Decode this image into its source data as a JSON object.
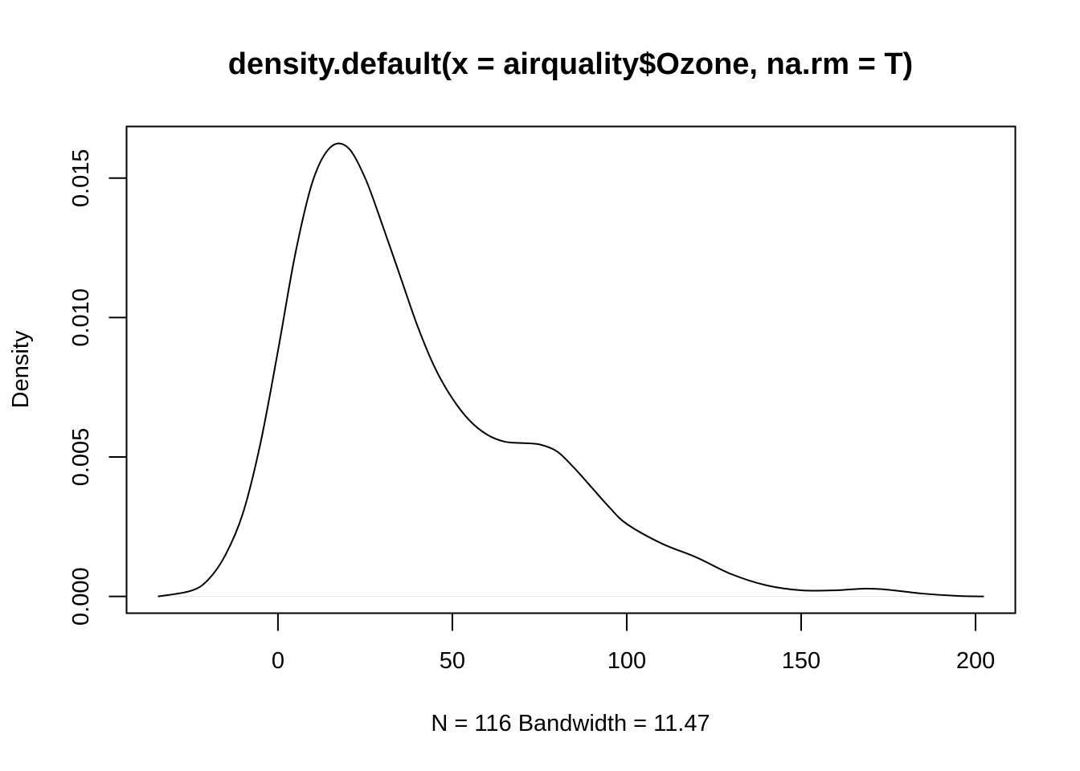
{
  "chart_data": {
    "type": "line",
    "title": "density.default(x = airquality$Ozone, na.rm = T)",
    "xlabel": "N = 116   Bandwidth = 11.47",
    "ylabel": "Density",
    "xlim": [
      -43.4,
      211.4
    ],
    "ylim": [
      -0.0006,
      0.01685
    ],
    "x_ticks": [
      0,
      50,
      100,
      150,
      200
    ],
    "x_tick_labels": [
      "0",
      "50",
      "100",
      "150",
      "200"
    ],
    "y_ticks": [
      0.0,
      0.005,
      0.01,
      0.015
    ],
    "y_tick_labels": [
      "0.000",
      "0.005",
      "0.010",
      "0.015"
    ],
    "grid": false,
    "baseline": 0,
    "colors": {
      "line": "#000000",
      "baseline": "#e8e8e8",
      "axis": "#000000"
    },
    "series": [
      {
        "x": [
          -34.4,
          -25,
          -20,
          -15,
          -10,
          -5,
          0,
          5,
          10,
          15,
          20,
          25,
          30,
          35,
          40,
          45,
          50,
          55,
          60,
          65,
          70,
          75,
          80,
          85,
          90,
          95,
          100,
          110,
          120,
          130,
          140,
          150,
          160,
          168,
          175,
          185,
          195,
          202.4
        ],
        "y": [
          0.0,
          0.0002,
          0.0006,
          0.0015,
          0.003,
          0.0055,
          0.0088,
          0.0123,
          0.0149,
          0.0161,
          0.0161,
          0.015,
          0.0133,
          0.0115,
          0.0097,
          0.0082,
          0.0071,
          0.0063,
          0.0058,
          0.00555,
          0.0055,
          0.00545,
          0.0052,
          0.0046,
          0.0039,
          0.0032,
          0.0026,
          0.0019,
          0.0014,
          0.0008,
          0.0004,
          0.00022,
          0.00022,
          0.00028,
          0.00024,
          0.0001,
          2e-05,
          0.0
        ]
      }
    ]
  }
}
